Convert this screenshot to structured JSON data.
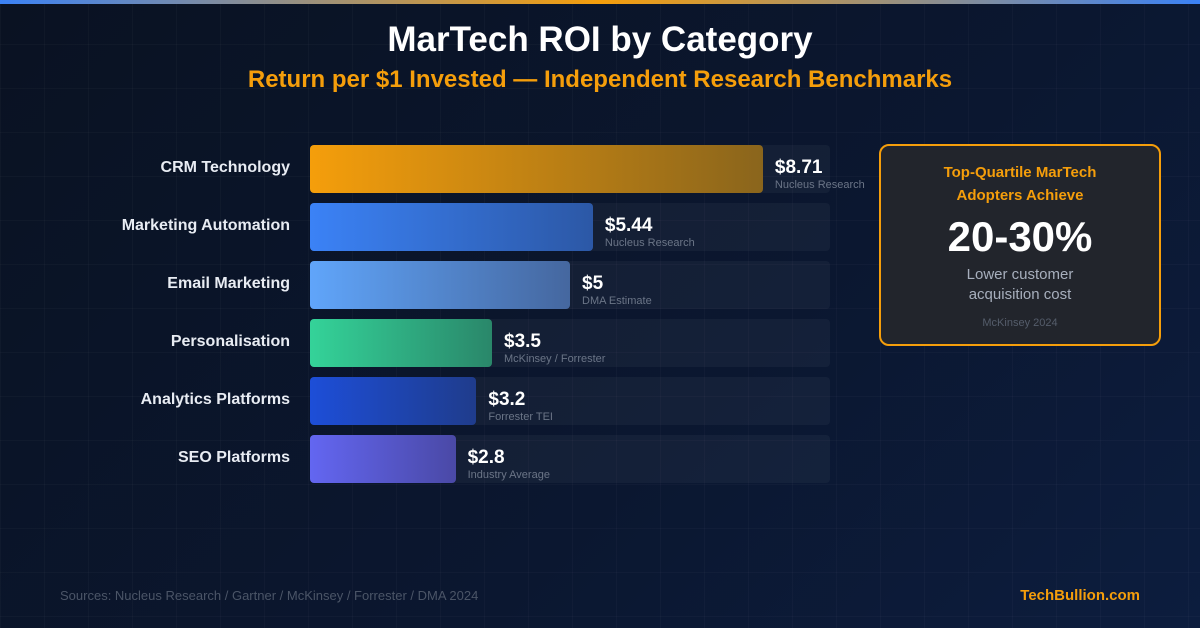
{
  "title": "MarTech ROI by Category",
  "subtitle": "Return per $1 Invested — Independent Research Benchmarks",
  "chart_data": {
    "type": "bar",
    "orientation": "horizontal",
    "title": "MarTech ROI by Category",
    "subtitle": "Return per $1 Invested — Independent Research Benchmarks",
    "xlim": [
      0,
      10
    ],
    "grid": false,
    "categories": [
      "CRM Technology",
      "Marketing Automation",
      "Email Marketing",
      "Personalisation",
      "Analytics Platforms",
      "SEO Platforms"
    ],
    "values": [
      8.71,
      5.44,
      5,
      3.5,
      3.2,
      2.8
    ],
    "value_labels": [
      "$8.71",
      "$5.44",
      "$5",
      "$3.5",
      "$3.2",
      "$2.8"
    ],
    "sources": [
      "Nucleus Research",
      "Nucleus Research",
      "DMA Estimate",
      "McKinsey / Forrester",
      "Forrester TEI",
      "Industry Average"
    ],
    "colors": [
      [
        "#f59e0b",
        "#8a651c"
      ],
      [
        "#3b82f6",
        "#2c58a6"
      ],
      [
        "#60a5fa",
        "#45679f"
      ],
      [
        "#34d399",
        "#2a876a"
      ],
      [
        "#1d4ed8",
        "#1f3c8c"
      ],
      [
        "#6366f1",
        "#4a49a6"
      ]
    ]
  },
  "callout": {
    "heading": "Top-Quartile MarTech Adopters Achieve",
    "big": "20-30%",
    "desc": "Lower customer acquisition cost",
    "source": "McKinsey 2024",
    "accent": "#f59e0b"
  },
  "footer": {
    "sources": "Sources: Nucleus Research / Gartner / McKinsey / Forrester / DMA 2024",
    "brand": "TechBullion.com"
  }
}
